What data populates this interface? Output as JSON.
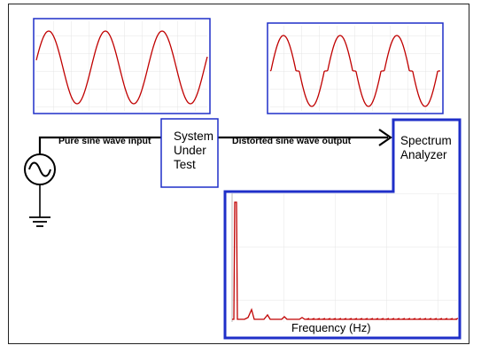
{
  "diagram": {
    "input_label": "Pure sine wave input",
    "system_label": [
      "System",
      "Under",
      "Test"
    ],
    "output_label": "Distorted sine wave output",
    "analyzer_label": [
      "Spectrum",
      "Analyzer"
    ],
    "spectrum_xlabel": "Frequency (Hz)",
    "colors": {
      "wave": "#c00000",
      "box_border": "#1f2fc8",
      "grid": "#dddddd",
      "wire": "#000000"
    },
    "icons": [
      "ac-source-icon",
      "ground-icon",
      "arrow-head-icon"
    ]
  }
}
